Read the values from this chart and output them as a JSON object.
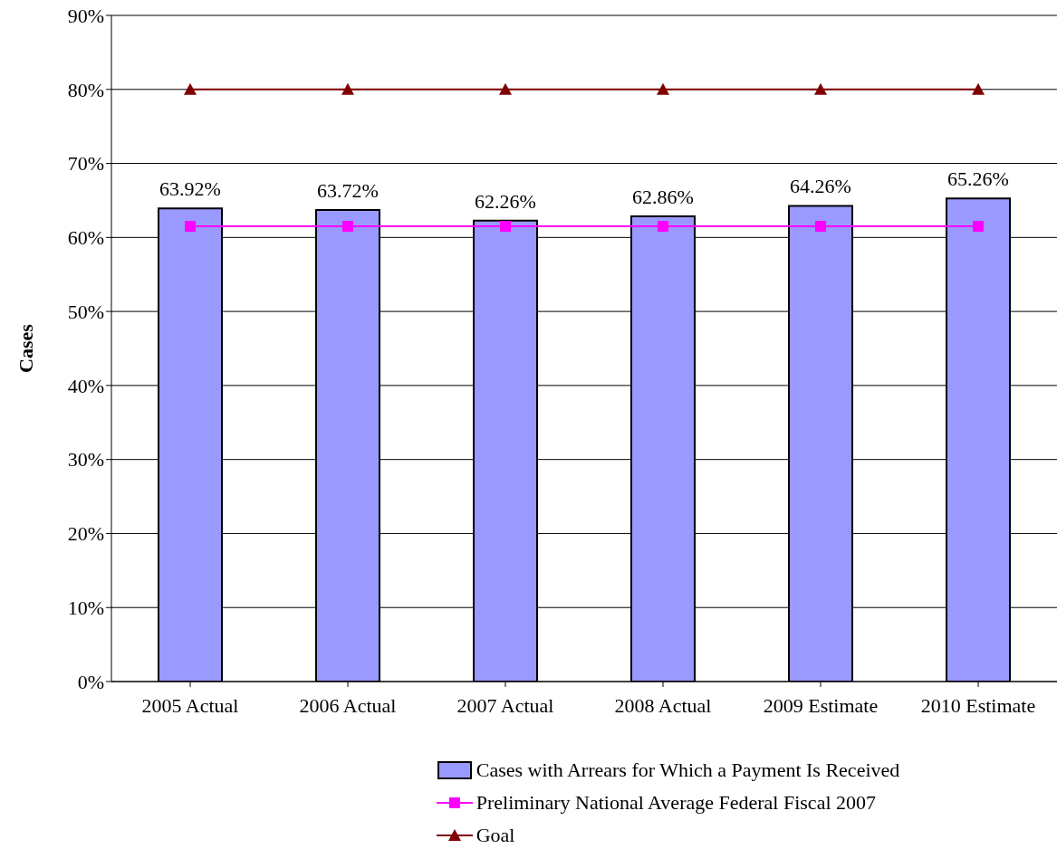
{
  "chart_data": {
    "type": "bar",
    "ylabel": "Cases",
    "categories": [
      "2005 Actual",
      "2006 Actual",
      "2007 Actual",
      "2008 Actual",
      "2009 Estimate",
      "2010 Estimate"
    ],
    "series": [
      {
        "name": "Cases with Arrears for Which a Payment Is Received",
        "color": "#9999ff",
        "values": [
          63.92,
          63.72,
          62.26,
          62.86,
          64.26,
          65.26
        ],
        "value_labels": [
          "63.92%",
          "63.72%",
          "62.26%",
          "62.86%",
          "64.26%",
          "65.26%"
        ]
      },
      {
        "name": "Preliminary National Average Federal Fiscal 2007",
        "type": "line",
        "color": "#ff00ff",
        "marker": "square",
        "values": [
          61.5,
          61.5,
          61.5,
          61.5,
          61.5,
          61.5
        ]
      },
      {
        "name": "Goal",
        "type": "line",
        "color": "#800000",
        "marker": "triangle",
        "values": [
          80,
          80,
          80,
          80,
          80,
          80
        ]
      }
    ],
    "ylim": [
      0,
      90
    ],
    "yticks": [
      {
        "value": 0,
        "label": "0%"
      },
      {
        "value": 10,
        "label": "10%"
      },
      {
        "value": 20,
        "label": "20%"
      },
      {
        "value": 30,
        "label": "30%"
      },
      {
        "value": 40,
        "label": "40%"
      },
      {
        "value": 50,
        "label": "50%"
      },
      {
        "value": 60,
        "label": "60%"
      },
      {
        "value": 70,
        "label": "70%"
      },
      {
        "value": 80,
        "label": "80%"
      },
      {
        "value": 90,
        "label": "90%"
      }
    ],
    "grid": "y",
    "legend": "bottom"
  }
}
